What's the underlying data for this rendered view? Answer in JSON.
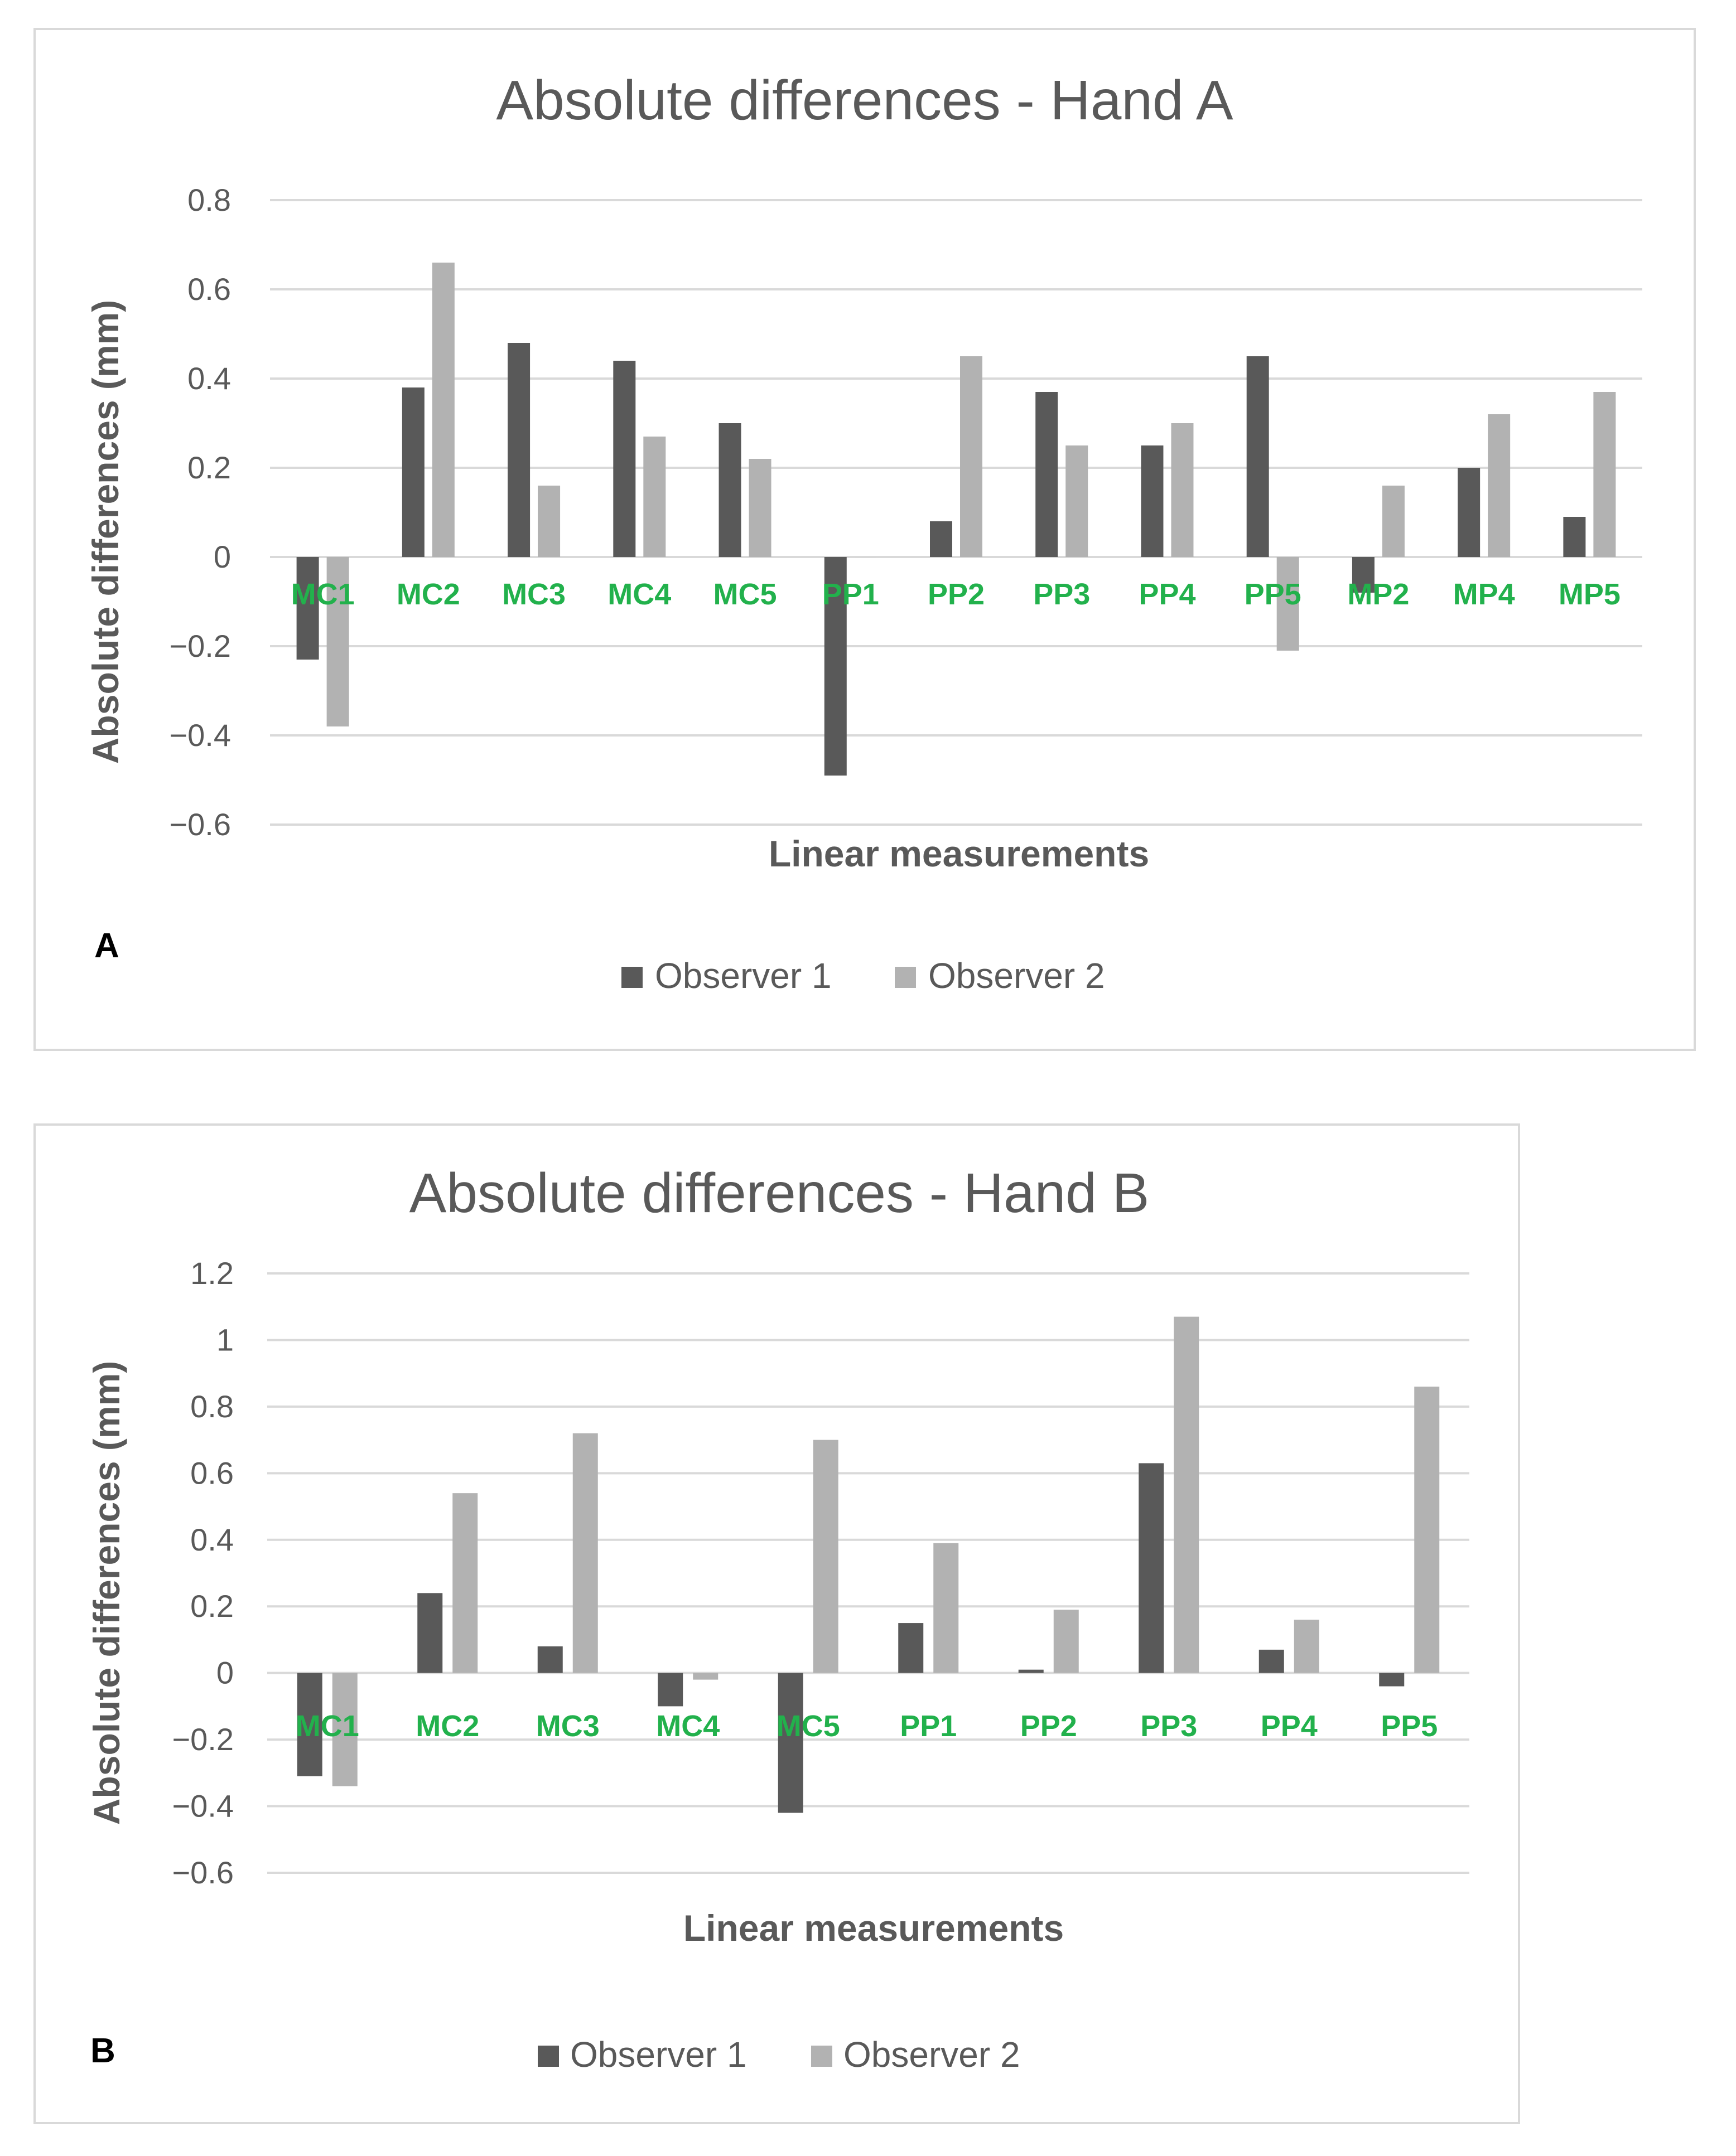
{
  "chart_data": [
    {
      "type": "bar",
      "panel": "A",
      "title": "Absolute differences - Hand A",
      "xlabel": "Linear measurements",
      "ylabel": "Absolute differences (mm)",
      "ylim": [
        -0.6,
        0.8
      ],
      "ticks": [
        0.8,
        0.6,
        0.4,
        0.2,
        0,
        -0.2,
        -0.4,
        -0.6
      ],
      "tick_labels": [
        "0.8",
        "0.6",
        "0.4",
        "0.2",
        "0",
        "−0.2",
        "−0.4",
        "−0.6"
      ],
      "categories": [
        "MC1",
        "MC2",
        "MC3",
        "MC4",
        "MC5",
        "PP1",
        "PP2",
        "PP3",
        "PP4",
        "PP5",
        "MP2",
        "MP4",
        "MP5"
      ],
      "series": [
        {
          "name": "Observer 1",
          "color": "#595959",
          "values": [
            -0.23,
            0.38,
            0.48,
            0.44,
            0.3,
            -0.49,
            0.08,
            0.37,
            0.25,
            0.45,
            -0.08,
            0.2,
            0.09
          ]
        },
        {
          "name": "Observer 2",
          "color": "#b2b2b2",
          "values": [
            -0.38,
            0.66,
            0.16,
            0.27,
            0.22,
            0.0,
            0.45,
            0.25,
            0.3,
            -0.21,
            0.16,
            0.32,
            0.37
          ]
        }
      ],
      "legend": "bottom",
      "grid": true
    },
    {
      "type": "bar",
      "panel": "B",
      "title": "Absolute differences - Hand B",
      "xlabel": "Linear measurements",
      "ylabel": "Absolute differences (mm)",
      "ylim": [
        -0.6,
        1.2
      ],
      "ticks": [
        1.2,
        1,
        0.8,
        0.6,
        0.4,
        0.2,
        0,
        -0.2,
        -0.4,
        -0.6
      ],
      "tick_labels": [
        "1.2",
        "1",
        "0.8",
        "0.6",
        "0.4",
        "0.2",
        "0",
        "−0.2",
        "−0.4",
        "−0.6"
      ],
      "categories": [
        "MC1",
        "MC2",
        "MC3",
        "MC4",
        "MC5",
        "PP1",
        "PP2",
        "PP3",
        "PP4",
        "PP5"
      ],
      "series": [
        {
          "name": "Observer 1",
          "color": "#595959",
          "values": [
            -0.31,
            0.24,
            0.08,
            -0.1,
            -0.42,
            0.15,
            0.01,
            0.63,
            0.07,
            -0.04
          ]
        },
        {
          "name": "Observer 2",
          "color": "#b2b2b2",
          "values": [
            -0.34,
            0.54,
            0.72,
            -0.02,
            0.7,
            0.39,
            0.19,
            1.07,
            0.16,
            0.86
          ]
        }
      ],
      "legend": "bottom",
      "grid": true
    }
  ]
}
